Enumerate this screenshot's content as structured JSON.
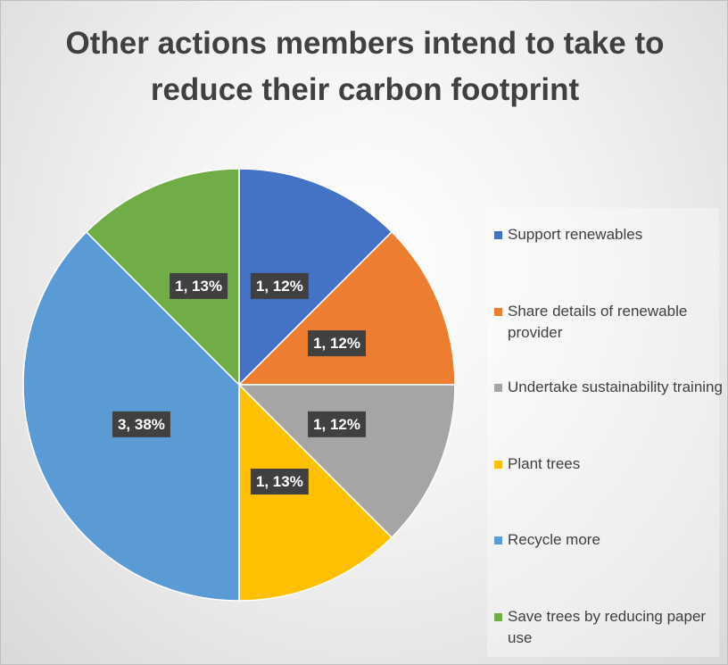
{
  "chart_data": {
    "type": "pie",
    "title": "Other actions members intend to take to reduce their carbon footprint",
    "categories": [
      "Support renewables",
      "Share details of renewable provider",
      "Undertake sustainability training",
      "Plant trees",
      "Recycle more",
      "Save trees by reducing paper use"
    ],
    "values": [
      1,
      1,
      1,
      1,
      3,
      1
    ],
    "value_labels": [
      "1, 12%",
      "1, 12%",
      "1, 12%",
      "1, 13%",
      "3, 38%",
      "1, 13%"
    ],
    "colors": [
      "#4472c4",
      "#ed7d31",
      "#a5a5a5",
      "#ffc000",
      "#5b9bd5",
      "#70ad47"
    ],
    "legend": "right"
  }
}
